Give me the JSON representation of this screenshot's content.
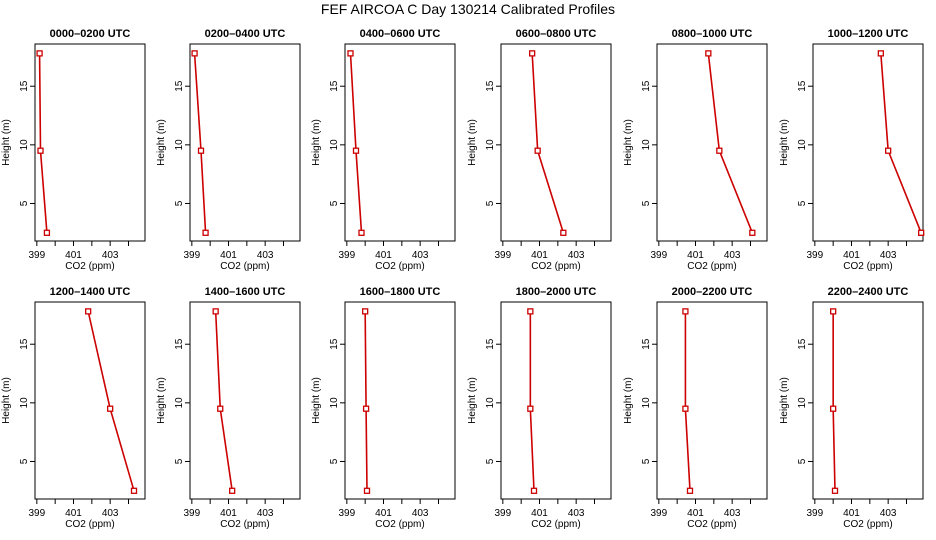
{
  "figure": {
    "title": "FEF AIRCOA C  Day 130214  Calibrated Profiles",
    "line_color": "#cc0000",
    "axis_color": "#000000"
  },
  "chart_data": [
    {
      "type": "line",
      "title": "0000–0200 UTC",
      "xlabel": "CO2 (ppm)",
      "ylabel": "Height (m)",
      "xticks": [
        "399",
        "401",
        "403"
      ],
      "yticks": [
        "5",
        "10",
        "15"
      ],
      "xlim": [
        398.9,
        404.9
      ],
      "ylim": [
        1.8,
        18.6
      ],
      "heights": [
        2.5,
        9.5,
        17.8
      ],
      "values": [
        399.55,
        399.2,
        399.15
      ]
    },
    {
      "type": "line",
      "title": "0200–0400 UTC",
      "xlabel": "CO2 (ppm)",
      "ylabel": "Height (m)",
      "xticks": [
        "399",
        "401",
        "403"
      ],
      "yticks": [
        "5",
        "10",
        "15"
      ],
      "xlim": [
        398.9,
        404.9
      ],
      "ylim": [
        1.8,
        18.6
      ],
      "heights": [
        2.5,
        9.5,
        17.8
      ],
      "values": [
        399.75,
        399.5,
        399.15
      ]
    },
    {
      "type": "line",
      "title": "0400–0600 UTC",
      "xlabel": "CO2 (ppm)",
      "ylabel": "Height (m)",
      "xticks": [
        "399",
        "401",
        "403"
      ],
      "yticks": [
        "5",
        "10",
        "15"
      ],
      "xlim": [
        398.9,
        404.9
      ],
      "ylim": [
        1.8,
        18.6
      ],
      "heights": [
        2.5,
        9.5,
        17.8
      ],
      "values": [
        399.8,
        399.5,
        399.2
      ]
    },
    {
      "type": "line",
      "title": "0600–0800 UTC",
      "xlabel": "CO2 (ppm)",
      "ylabel": "Height (m)",
      "xticks": [
        "399",
        "401",
        "403"
      ],
      "yticks": [
        "5",
        "10",
        "15"
      ],
      "xlim": [
        398.9,
        404.9
      ],
      "ylim": [
        1.8,
        18.6
      ],
      "heights": [
        2.5,
        9.5,
        17.8
      ],
      "values": [
        402.3,
        400.9,
        400.6
      ]
    },
    {
      "type": "line",
      "title": "0800–1000 UTC",
      "xlabel": "CO2 (ppm)",
      "ylabel": "Height (m)",
      "xticks": [
        "399",
        "401",
        "403"
      ],
      "yticks": [
        "5",
        "10",
        "15"
      ],
      "xlim": [
        398.9,
        404.9
      ],
      "ylim": [
        1.8,
        18.6
      ],
      "heights": [
        2.5,
        9.5,
        17.8
      ],
      "values": [
        404.1,
        402.3,
        401.7
      ]
    },
    {
      "type": "line",
      "title": "1000–1200 UTC",
      "xlabel": "CO2 (ppm)",
      "ylabel": "Height (m)",
      "xticks": [
        "399",
        "401",
        "403"
      ],
      "yticks": [
        "5",
        "10",
        "15"
      ],
      "xlim": [
        398.9,
        404.9
      ],
      "ylim": [
        1.8,
        18.6
      ],
      "heights": [
        2.5,
        9.5,
        17.8
      ],
      "values": [
        404.8,
        403.0,
        402.6
      ]
    },
    {
      "type": "line",
      "title": "1200–1400 UTC",
      "xlabel": "CO2 (ppm)",
      "ylabel": "Height (m)",
      "xticks": [
        "399",
        "401",
        "403"
      ],
      "yticks": [
        "5",
        "10",
        "15"
      ],
      "xlim": [
        398.9,
        404.9
      ],
      "ylim": [
        1.8,
        18.6
      ],
      "heights": [
        2.5,
        9.5,
        17.8
      ],
      "values": [
        404.3,
        403.0,
        401.8
      ]
    },
    {
      "type": "line",
      "title": "1400–1600 UTC",
      "xlabel": "CO2 (ppm)",
      "ylabel": "Height (m)",
      "xticks": [
        "399",
        "401",
        "403"
      ],
      "yticks": [
        "5",
        "10",
        "15"
      ],
      "xlim": [
        398.9,
        404.9
      ],
      "ylim": [
        1.8,
        18.6
      ],
      "heights": [
        2.5,
        9.5,
        17.8
      ],
      "values": [
        401.2,
        400.55,
        400.3
      ]
    },
    {
      "type": "line",
      "title": "1600–1800 UTC",
      "xlabel": "CO2 (ppm)",
      "ylabel": "Height (m)",
      "xticks": [
        "399",
        "401",
        "403"
      ],
      "yticks": [
        "5",
        "10",
        "15"
      ],
      "xlim": [
        398.9,
        404.9
      ],
      "ylim": [
        1.8,
        18.6
      ],
      "heights": [
        2.5,
        9.5,
        17.8
      ],
      "values": [
        400.1,
        400.05,
        400.0
      ]
    },
    {
      "type": "line",
      "title": "1800–2000 UTC",
      "xlabel": "CO2 (ppm)",
      "ylabel": "Height (m)",
      "xticks": [
        "399",
        "401",
        "403"
      ],
      "yticks": [
        "5",
        "10",
        "15"
      ],
      "xlim": [
        398.9,
        404.9
      ],
      "ylim": [
        1.8,
        18.6
      ],
      "heights": [
        2.5,
        9.5,
        17.8
      ],
      "values": [
        400.7,
        400.5,
        400.5
      ]
    },
    {
      "type": "line",
      "title": "2000–2200 UTC",
      "xlabel": "CO2 (ppm)",
      "ylabel": "Height (m)",
      "xticks": [
        "399",
        "401",
        "403"
      ],
      "yticks": [
        "5",
        "10",
        "15"
      ],
      "xlim": [
        398.9,
        404.9
      ],
      "ylim": [
        1.8,
        18.6
      ],
      "heights": [
        2.5,
        9.5,
        17.8
      ],
      "values": [
        400.7,
        400.45,
        400.45
      ]
    },
    {
      "type": "line",
      "title": "2200–2400 UTC",
      "xlabel": "CO2 (ppm)",
      "ylabel": "Height (m)",
      "xticks": [
        "399",
        "401",
        "403"
      ],
      "yticks": [
        "5",
        "10",
        "15"
      ],
      "xlim": [
        398.9,
        404.9
      ],
      "ylim": [
        1.8,
        18.6
      ],
      "heights": [
        2.5,
        9.5,
        17.8
      ],
      "values": [
        400.1,
        400.0,
        400.0
      ]
    }
  ]
}
